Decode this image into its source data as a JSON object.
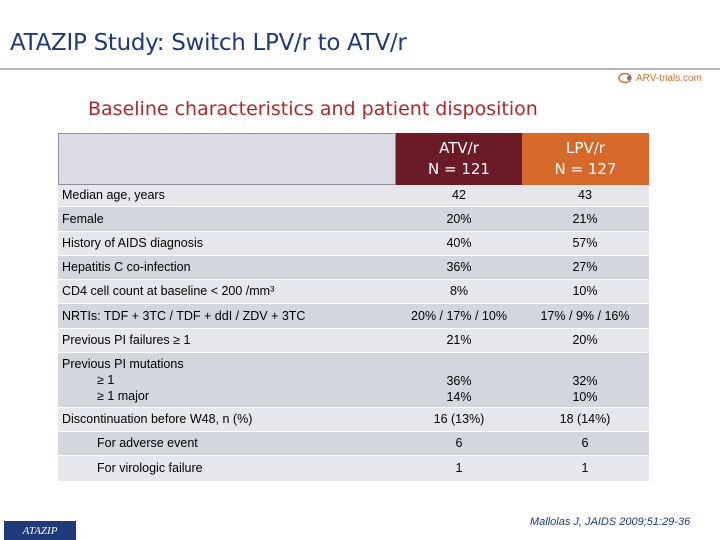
{
  "header": {
    "title": "ATAZIP Study: Switch LPV/r to ATV/r",
    "brand": "ARV-trials.com"
  },
  "subtitle": "Baseline characteristics and patient disposition",
  "columns": [
    {
      "name": "ATV/r",
      "n": "N = 121"
    },
    {
      "name": "LPV/r",
      "n": "N = 127"
    }
  ],
  "rows": [
    {
      "label": "Median age, years",
      "atv": "42",
      "lpv": "43"
    },
    {
      "label": "Female",
      "atv": "20%",
      "lpv": "21%"
    },
    {
      "label": "History of AIDS diagnosis",
      "atv": "40%",
      "lpv": "57%"
    },
    {
      "label": "Hepatitis C co-infection",
      "atv": "36%",
      "lpv": "27%"
    },
    {
      "label": "CD4 cell count at baseline < 200 /mm³",
      "atv": "8%",
      "lpv": "10%"
    },
    {
      "label": "NRTIs: TDF + 3TC / TDF + ddI / ZDV + 3TC",
      "atv": "20% / 17% / 10%",
      "lpv": "17% / 9% / 16%"
    },
    {
      "label": "Previous PI failures ≥ 1",
      "atv": "21%",
      "lpv": "20%"
    },
    {
      "label": "Previous PI mutations",
      "sub1": "≥ 1",
      "sub2": "≥ 1 major",
      "atv1": "36%",
      "atv2": "14%",
      "lpv1": "32%",
      "lpv2": "10%"
    },
    {
      "label": "Discontinuation before W48, n (%)",
      "atv": "16 (13%)",
      "lpv": "18 (14%)"
    },
    {
      "label": "For adverse event",
      "atv": "6",
      "lpv": "6"
    },
    {
      "label": "For virologic failure",
      "atv": "1",
      "lpv": "1"
    }
  ],
  "footer": {
    "tag": "ATAZIP",
    "citation": "Mallolas J, JAIDS 2009;51:29-36"
  },
  "colors": {
    "title_blue": "#1f3a7a",
    "subtitle_red": "#b1262c",
    "atv_header": "#6b1a27",
    "lpv_header": "#d6682a",
    "row_light": "#e6e7ec",
    "row_dark": "#d4d6de"
  }
}
